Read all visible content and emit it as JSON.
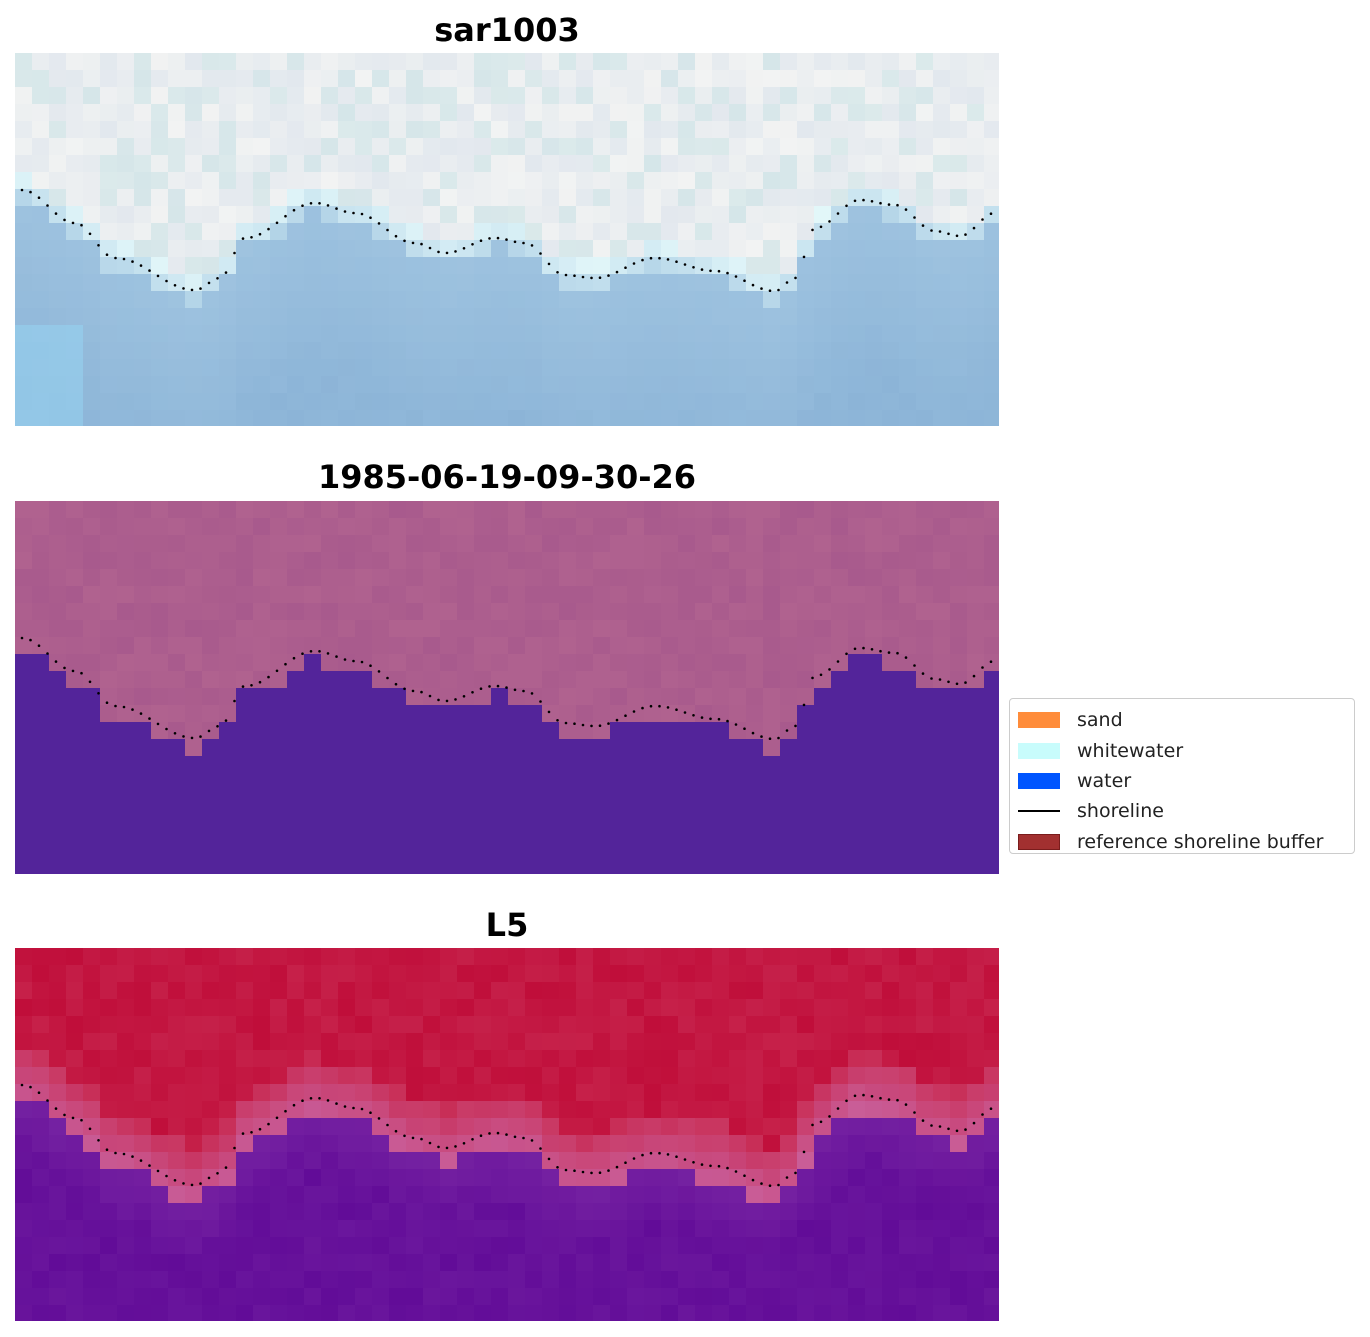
{
  "panels": [
    {
      "title": "sar1003",
      "style": "rgb"
    },
    {
      "title": "1985-06-19-09-30-26",
      "style": "classified"
    },
    {
      "title": "L5",
      "style": "index"
    }
  ],
  "legend": {
    "items": [
      {
        "label": "sand",
        "color": "#ff8c3a",
        "kind": "patch"
      },
      {
        "label": "whitewater",
        "color": "#c8fcfc",
        "kind": "patch"
      },
      {
        "label": "water",
        "color": "#0055ff",
        "kind": "patch"
      },
      {
        "label": "shoreline",
        "color": "#000000",
        "kind": "line"
      },
      {
        "label": "reference shoreline buffer",
        "color": "#a23030",
        "kind": "patch"
      }
    ]
  },
  "colors": {
    "classified_water": "#53249a",
    "classified_land": "#b0628f",
    "index_high": "#bf0a3a",
    "index_low": "#5a0a9a"
  }
}
